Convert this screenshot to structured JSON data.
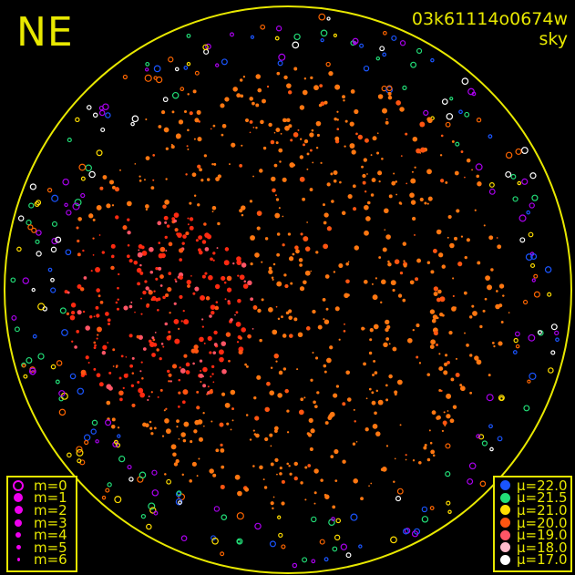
{
  "direction_label": "NE",
  "title": {
    "frame_id": "03k61114o0674w",
    "mode": "sky"
  },
  "colors": {
    "frame": "#e8e800",
    "background": "#000000"
  },
  "magnitude_legend": {
    "symbol_color": "#ee00ee",
    "items": [
      {
        "label": "m=0",
        "symbol": "open-circle"
      },
      {
        "label": "m=1",
        "symbol": "dot"
      },
      {
        "label": "m=2",
        "symbol": "dot"
      },
      {
        "label": "m=3",
        "symbol": "dot"
      },
      {
        "label": "m=4",
        "symbol": "dot"
      },
      {
        "label": "m=5",
        "symbol": "dot"
      },
      {
        "label": "m=6",
        "symbol": "dot"
      }
    ]
  },
  "sky_brightness_legend": {
    "items": [
      {
        "label": "μ=22.0",
        "color": "#1a55ff"
      },
      {
        "label": "μ=21.5",
        "color": "#22dd77"
      },
      {
        "label": "μ=21.0",
        "color": "#ffdd00"
      },
      {
        "label": "μ=20.0",
        "color": "#ff5511"
      },
      {
        "label": "μ=19.0",
        "color": "#ff5566"
      },
      {
        "label": "μ=18.0",
        "color": "#ffbbcc"
      },
      {
        "label": "μ=17.0",
        "color": "#ffffff"
      }
    ]
  }
}
